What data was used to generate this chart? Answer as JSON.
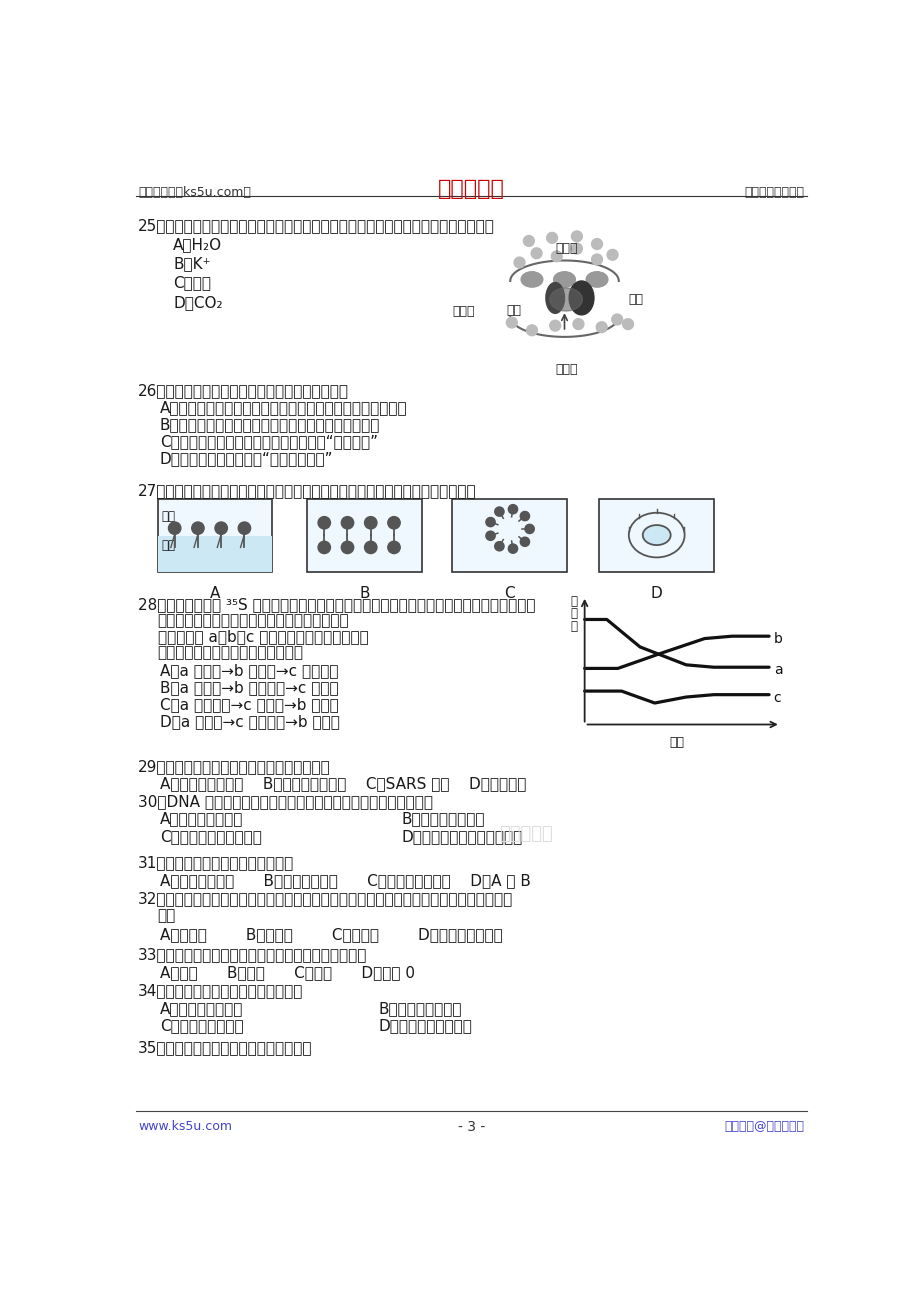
{
  "bg_color": "#ffffff",
  "header_left": "高考资源网（ks5u.com）",
  "header_center": "高考资源网",
  "header_right": "您身边的高考专家",
  "header_center_color": "#cc0000",
  "footer_left": "www.ks5u.com",
  "footer_center": "- 3 -",
  "footer_right": "版权所有@高考资源网",
  "footer_color_lr": "#4444cc"
}
